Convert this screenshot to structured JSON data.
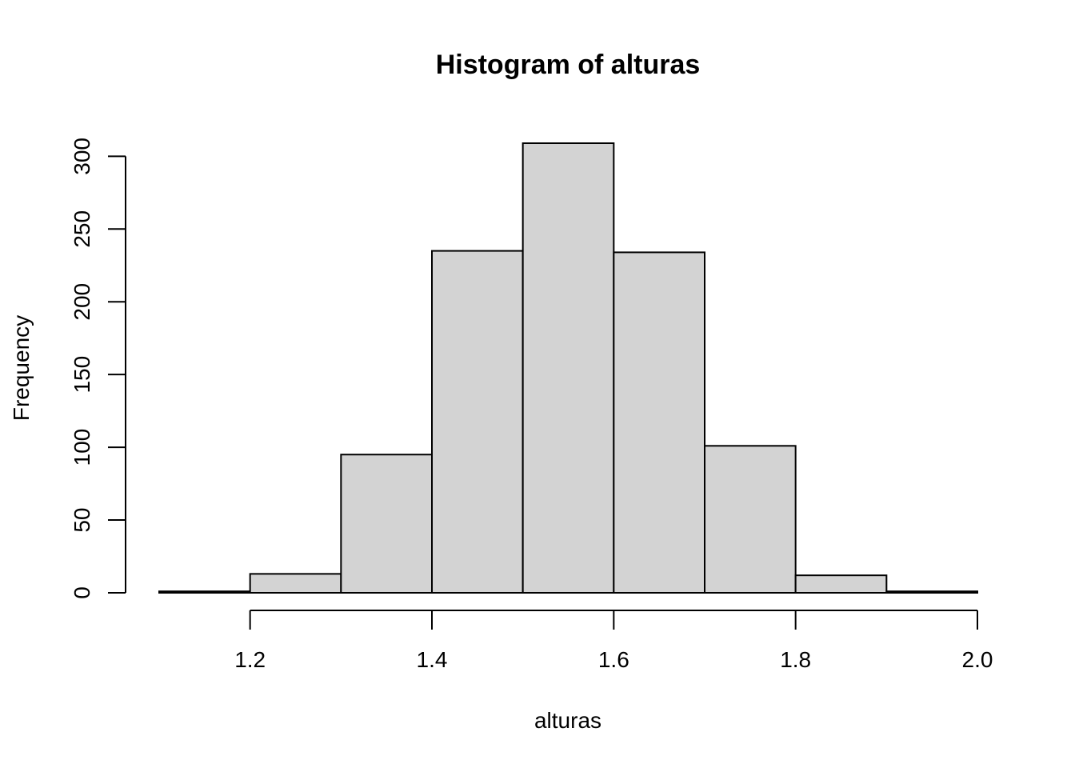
{
  "chart_data": {
    "type": "bar",
    "title": "Histogram of alturas",
    "xlabel": "alturas",
    "ylabel": "Frequency",
    "bins": [
      {
        "start": 1.1,
        "end": 1.2,
        "count": 1
      },
      {
        "start": 1.2,
        "end": 1.3,
        "count": 13
      },
      {
        "start": 1.3,
        "end": 1.4,
        "count": 95
      },
      {
        "start": 1.4,
        "end": 1.5,
        "count": 235
      },
      {
        "start": 1.5,
        "end": 1.6,
        "count": 309
      },
      {
        "start": 1.6,
        "end": 1.7,
        "count": 234
      },
      {
        "start": 1.7,
        "end": 1.8,
        "count": 101
      },
      {
        "start": 1.8,
        "end": 1.9,
        "count": 12
      },
      {
        "start": 1.9,
        "end": 2.0,
        "count": 1
      }
    ],
    "xlim": [
      1.1,
      2.0
    ],
    "ylim": [
      0,
      309
    ],
    "xticks": [
      {
        "value": 1.2,
        "label": "1.2"
      },
      {
        "value": 1.4,
        "label": "1.4"
      },
      {
        "value": 1.6,
        "label": "1.6"
      },
      {
        "value": 1.8,
        "label": "1.8"
      },
      {
        "value": 2.0,
        "label": "2.0"
      }
    ],
    "yticks": [
      {
        "value": 0,
        "label": "0"
      },
      {
        "value": 50,
        "label": "50"
      },
      {
        "value": 100,
        "label": "100"
      },
      {
        "value": 150,
        "label": "150"
      },
      {
        "value": 200,
        "label": "200"
      },
      {
        "value": 250,
        "label": "250"
      },
      {
        "value": 300,
        "label": "300"
      }
    ],
    "grid": false,
    "legend": "none",
    "colors": {
      "bar_fill": "#d3d3d3",
      "bar_stroke": "#000000"
    }
  }
}
